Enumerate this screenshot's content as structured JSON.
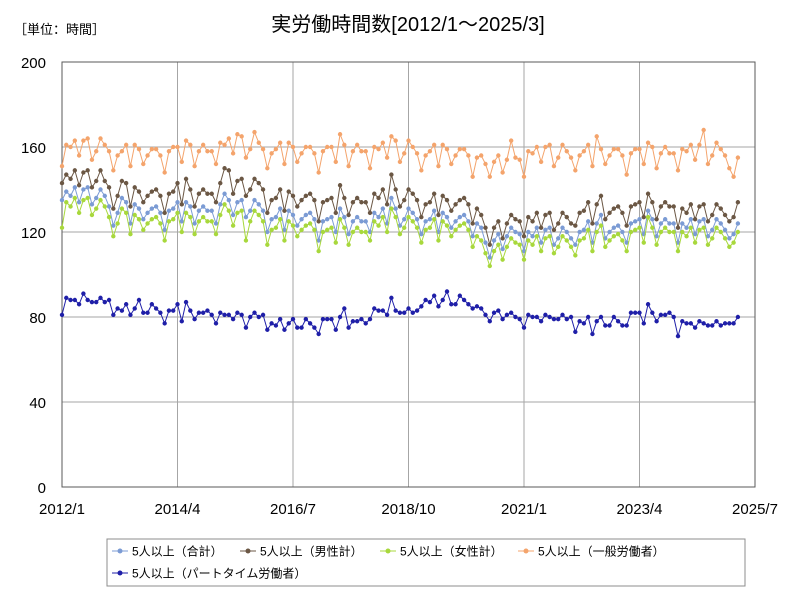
{
  "chart_data": {
    "type": "line",
    "title": "実労働時間数[2012/1～2025/3]",
    "unit_label": "［単位：時間］",
    "xlabel": "",
    "ylabel": "",
    "ylim": [
      0,
      200
    ],
    "yticks": [
      0,
      40,
      80,
      120,
      160,
      200
    ],
    "xlim": [
      "2012/1",
      "2025/7"
    ],
    "xticks": [
      "2012/1",
      "2014/4",
      "2016/7",
      "2018/10",
      "2021/1",
      "2023/4",
      "2025/7"
    ],
    "grid": true,
    "legend_position": "bottom",
    "x": [
      "2012/1",
      "2012/2",
      "2012/3",
      "2012/4",
      "2012/5",
      "2012/6",
      "2012/7",
      "2012/8",
      "2012/9",
      "2012/10",
      "2012/11",
      "2012/12",
      "2013/1",
      "2013/2",
      "2013/3",
      "2013/4",
      "2013/5",
      "2013/6",
      "2013/7",
      "2013/8",
      "2013/9",
      "2013/10",
      "2013/11",
      "2013/12",
      "2014/1",
      "2014/2",
      "2014/3",
      "2014/4",
      "2014/5",
      "2014/6",
      "2014/7",
      "2014/8",
      "2014/9",
      "2014/10",
      "2014/11",
      "2014/12",
      "2015/1",
      "2015/2",
      "2015/3",
      "2015/4",
      "2015/5",
      "2015/6",
      "2015/7",
      "2015/8",
      "2015/9",
      "2015/10",
      "2015/11",
      "2015/12",
      "2016/1",
      "2016/2",
      "2016/3",
      "2016/4",
      "2016/5",
      "2016/6",
      "2016/7",
      "2016/8",
      "2016/9",
      "2016/10",
      "2016/11",
      "2016/12",
      "2017/1",
      "2017/2",
      "2017/3",
      "2017/4",
      "2017/5",
      "2017/6",
      "2017/7",
      "2017/8",
      "2017/9",
      "2017/10",
      "2017/11",
      "2017/12",
      "2018/1",
      "2018/2",
      "2018/3",
      "2018/4",
      "2018/5",
      "2018/6",
      "2018/7",
      "2018/8",
      "2018/9",
      "2018/10",
      "2018/11",
      "2018/12",
      "2019/1",
      "2019/2",
      "2019/3",
      "2019/4",
      "2019/5",
      "2019/6",
      "2019/7",
      "2019/8",
      "2019/9",
      "2019/10",
      "2019/11",
      "2019/12",
      "2020/1",
      "2020/2",
      "2020/3",
      "2020/4",
      "2020/5",
      "2020/6",
      "2020/7",
      "2020/8",
      "2020/9",
      "2020/10",
      "2020/11",
      "2020/12",
      "2021/1",
      "2021/2",
      "2021/3",
      "2021/4",
      "2021/5",
      "2021/6",
      "2021/7",
      "2021/8",
      "2021/9",
      "2021/10",
      "2021/11",
      "2021/12",
      "2022/1",
      "2022/2",
      "2022/3",
      "2022/4",
      "2022/5",
      "2022/6",
      "2022/7",
      "2022/8",
      "2022/9",
      "2022/10",
      "2022/11",
      "2022/12",
      "2023/1",
      "2023/2",
      "2023/3",
      "2023/4",
      "2023/5",
      "2023/6",
      "2023/7",
      "2023/8",
      "2023/9",
      "2023/10",
      "2023/11",
      "2023/12",
      "2024/1",
      "2024/2",
      "2024/3",
      "2024/4",
      "2024/5",
      "2024/6",
      "2024/7",
      "2024/8",
      "2024/9",
      "2024/10",
      "2024/11",
      "2024/12",
      "2025/1",
      "2025/2",
      "2025/3"
    ],
    "series": [
      {
        "name": "5人以上（合計）",
        "color": "#7b9bd4",
        "values": [
          135,
          139,
          137,
          141,
          134,
          140,
          141,
          133,
          136,
          140,
          137,
          132,
          123,
          129,
          136,
          134,
          124,
          133,
          131,
          126,
          129,
          131,
          132,
          129,
          121,
          130,
          131,
          134,
          125,
          134,
          132,
          124,
          130,
          132,
          130,
          130,
          124,
          133,
          138,
          135,
          128,
          134,
          135,
          127,
          130,
          135,
          133,
          130,
          120,
          126,
          127,
          131,
          121,
          130,
          128,
          123,
          126,
          128,
          129,
          126,
          116,
          125,
          126,
          127,
          120,
          131,
          127,
          119,
          125,
          127,
          125,
          125,
          120,
          129,
          127,
          131,
          124,
          136,
          131,
          123,
          126,
          131,
          129,
          126,
          119,
          125,
          126,
          130,
          120,
          129,
          127,
          122,
          125,
          127,
          128,
          125,
          118,
          124,
          122,
          115,
          108,
          116,
          119,
          112,
          118,
          122,
          120,
          119,
          111,
          120,
          118,
          122,
          115,
          121,
          122,
          114,
          117,
          122,
          120,
          117,
          114,
          120,
          121,
          125,
          115,
          124,
          128,
          117,
          120,
          122,
          123,
          120,
          115,
          124,
          125,
          126,
          119,
          130,
          126,
          118,
          124,
          126,
          124,
          124,
          115,
          124,
          122,
          126,
          119,
          125,
          126,
          118,
          121,
          126,
          124,
          121,
          117,
          119,
          124
        ]
      },
      {
        "name": "5人以上（男性計）",
        "color": "#6b5744",
        "values": [
          143,
          147,
          145,
          149,
          142,
          148,
          149,
          141,
          144,
          149,
          144,
          141,
          131,
          137,
          144,
          143,
          132,
          141,
          139,
          134,
          137,
          139,
          140,
          137,
          129,
          138,
          139,
          143,
          133,
          145,
          140,
          132,
          138,
          140,
          138,
          138,
          134,
          143,
          150,
          149,
          138,
          144,
          145,
          137,
          140,
          145,
          143,
          140,
          129,
          135,
          136,
          140,
          130,
          139,
          137,
          132,
          135,
          137,
          138,
          135,
          125,
          134,
          135,
          136,
          129,
          142,
          136,
          128,
          134,
          136,
          134,
          134,
          129,
          138,
          136,
          140,
          133,
          147,
          140,
          132,
          135,
          140,
          138,
          135,
          127,
          133,
          134,
          138,
          128,
          137,
          135,
          130,
          133,
          135,
          136,
          133,
          124,
          131,
          128,
          122,
          114,
          122,
          125,
          117,
          124,
          128,
          126,
          125,
          118,
          127,
          125,
          129,
          122,
          128,
          129,
          121,
          124,
          129,
          127,
          124,
          123,
          129,
          130,
          134,
          124,
          133,
          137,
          126,
          129,
          131,
          132,
          129,
          123,
          132,
          133,
          134,
          127,
          138,
          134,
          126,
          132,
          134,
          132,
          132,
          122,
          131,
          129,
          133,
          126,
          132,
          133,
          125,
          128,
          133,
          131,
          128,
          125,
          127,
          134
        ]
      },
      {
        "name": "5人以上（女性計）",
        "color": "#a8d83c",
        "values": [
          122,
          134,
          132,
          136,
          129,
          135,
          136,
          128,
          131,
          135,
          132,
          127,
          118,
          124,
          131,
          129,
          119,
          128,
          126,
          121,
          124,
          126,
          127,
          124,
          116,
          125,
          126,
          129,
          120,
          129,
          127,
          119,
          125,
          127,
          125,
          125,
          119,
          128,
          133,
          130,
          123,
          129,
          130,
          116,
          125,
          130,
          128,
          125,
          114,
          121,
          122,
          126,
          116,
          125,
          123,
          118,
          121,
          123,
          124,
          121,
          111,
          120,
          121,
          122,
          115,
          126,
          122,
          114,
          120,
          122,
          120,
          120,
          116,
          125,
          123,
          127,
          120,
          131,
          127,
          119,
          122,
          127,
          125,
          122,
          115,
          121,
          122,
          126,
          116,
          125,
          123,
          118,
          121,
          123,
          124,
          121,
          113,
          118,
          116,
          110,
          104,
          111,
          114,
          107,
          113,
          117,
          115,
          114,
          107,
          116,
          114,
          118,
          111,
          117,
          118,
          110,
          113,
          118,
          116,
          113,
          109,
          116,
          117,
          121,
          111,
          120,
          123,
          113,
          116,
          118,
          119,
          116,
          111,
          120,
          121,
          122,
          115,
          127,
          122,
          114,
          120,
          122,
          120,
          120,
          111,
          120,
          118,
          122,
          115,
          121,
          122,
          114,
          117,
          122,
          120,
          117,
          113,
          115,
          120
        ]
      },
      {
        "name": "5人以上（一般労働者）",
        "color": "#f4a46c",
        "values": [
          151,
          161,
          160,
          163,
          156,
          163,
          164,
          154,
          158,
          164,
          161,
          158,
          149,
          156,
          158,
          161,
          151,
          161,
          159,
          152,
          156,
          159,
          159,
          156,
          148,
          158,
          160,
          160,
          153,
          163,
          161,
          151,
          158,
          161,
          158,
          158,
          152,
          162,
          161,
          164,
          157,
          166,
          165,
          155,
          159,
          167,
          162,
          159,
          150,
          157,
          159,
          162,
          152,
          162,
          160,
          153,
          157,
          160,
          160,
          157,
          148,
          158,
          160,
          160,
          153,
          166,
          161,
          151,
          158,
          161,
          158,
          158,
          150,
          160,
          159,
          162,
          155,
          165,
          163,
          153,
          157,
          163,
          160,
          157,
          149,
          156,
          158,
          161,
          151,
          161,
          159,
          152,
          156,
          159,
          159,
          156,
          146,
          155,
          156,
          152,
          146,
          153,
          156,
          148,
          154,
          163,
          155,
          154,
          146,
          158,
          157,
          160,
          153,
          160,
          161,
          151,
          155,
          161,
          158,
          155,
          149,
          156,
          158,
          161,
          151,
          165,
          159,
          152,
          156,
          159,
          159,
          156,
          147,
          157,
          159,
          159,
          152,
          162,
          160,
          150,
          157,
          160,
          157,
          157,
          149,
          159,
          158,
          161,
          154,
          161,
          168,
          152,
          156,
          162,
          159,
          156,
          150,
          146,
          155
        ]
      },
      {
        "name": "5人以上（パートタイム労働者）",
        "color": "#1f1fa8",
        "values": [
          81,
          89,
          88,
          88,
          86,
          91,
          88,
          87,
          87,
          89,
          87,
          88,
          81,
          84,
          83,
          86,
          81,
          84,
          88,
          82,
          82,
          86,
          84,
          82,
          77,
          83,
          83,
          86,
          78,
          87,
          83,
          79,
          82,
          82,
          83,
          81,
          77,
          82,
          81,
          81,
          79,
          82,
          81,
          75,
          80,
          82,
          80,
          81,
          74,
          77,
          76,
          79,
          74,
          77,
          79,
          75,
          75,
          79,
          77,
          75,
          72,
          79,
          79,
          79,
          74,
          80,
          84,
          75,
          78,
          78,
          79,
          77,
          79,
          84,
          83,
          83,
          81,
          89,
          83,
          82,
          82,
          84,
          82,
          83,
          85,
          88,
          87,
          90,
          85,
          88,
          92,
          86,
          86,
          90,
          88,
          86,
          84,
          85,
          84,
          81,
          78,
          82,
          83,
          79,
          81,
          82,
          80,
          79,
          75,
          81,
          80,
          80,
          78,
          81,
          80,
          79,
          79,
          81,
          79,
          80,
          73,
          78,
          77,
          80,
          72,
          78,
          80,
          76,
          76,
          80,
          78,
          76,
          76,
          82,
          82,
          82,
          77,
          86,
          82,
          78,
          81,
          81,
          82,
          80,
          71,
          78,
          77,
          77,
          75,
          78,
          77,
          76,
          76,
          78,
          76,
          77,
          77,
          77,
          80
        ]
      }
    ]
  }
}
